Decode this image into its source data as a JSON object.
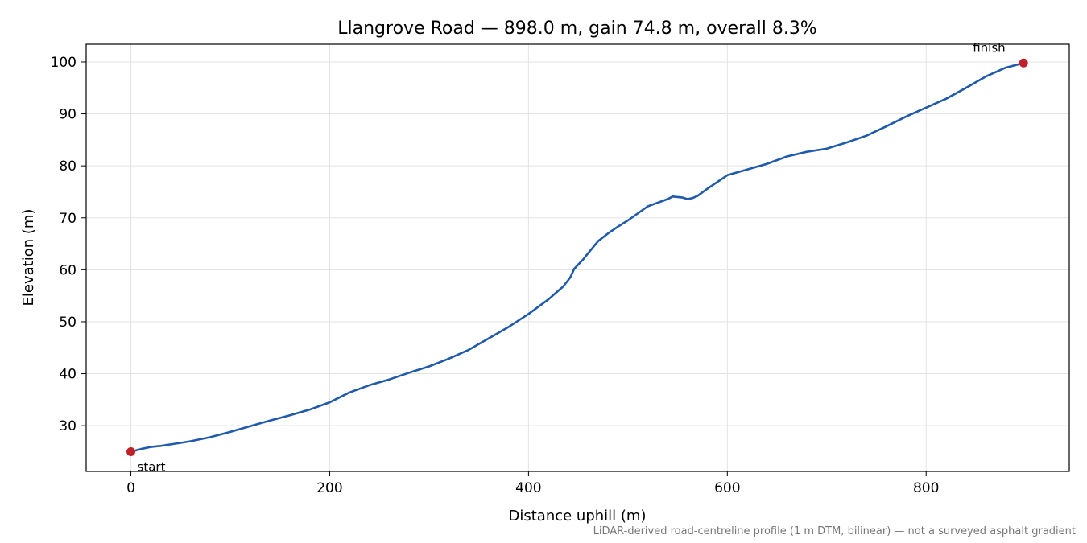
{
  "chart_data": {
    "type": "line",
    "title": "Llangrove Road — 898.0 m, gain 74.8 m, overall 8.3%",
    "xlabel": "Distance uphill (m)",
    "ylabel": "Elevation (m)",
    "xlim": [
      -45,
      944
    ],
    "ylim": [
      21.2,
      103.4
    ],
    "xticks": [
      0,
      200,
      400,
      600,
      800
    ],
    "yticks": [
      30,
      40,
      50,
      60,
      70,
      80,
      90,
      100
    ],
    "grid": true,
    "series": [
      {
        "color": "#1f5aab",
        "x": [
          0,
          10,
          20,
          30,
          40,
          50,
          60,
          80,
          100,
          120,
          140,
          160,
          180,
          200,
          220,
          240,
          260,
          280,
          300,
          320,
          340,
          360,
          380,
          400,
          420,
          435,
          442,
          446,
          450,
          455,
          460,
          470,
          480,
          490,
          500,
          520,
          540,
          545,
          550,
          555,
          560,
          565,
          570,
          580,
          600,
          620,
          640,
          660,
          680,
          700,
          720,
          740,
          760,
          780,
          800,
          820,
          840,
          860,
          880,
          898
        ],
        "y": [
          25.0,
          25.5,
          25.9,
          26.1,
          26.4,
          26.7,
          27.0,
          27.8,
          28.8,
          29.9,
          31.0,
          32.0,
          33.1,
          34.5,
          36.4,
          37.8,
          38.9,
          40.2,
          41.4,
          42.9,
          44.6,
          46.8,
          49.0,
          51.5,
          54.3,
          56.8,
          58.5,
          60.2,
          61.0,
          62.0,
          63.2,
          65.5,
          67.0,
          68.3,
          69.5,
          72.2,
          73.6,
          74.1,
          74.0,
          73.9,
          73.6,
          73.8,
          74.2,
          75.6,
          78.2,
          79.3,
          80.4,
          81.8,
          82.7,
          83.3,
          84.5,
          85.8,
          87.6,
          89.5,
          91.2,
          92.9,
          95.0,
          97.2,
          98.9,
          99.8
        ]
      }
    ],
    "markers": [
      {
        "label": "start",
        "x": 0,
        "y": 25.0,
        "color": "#c0202a"
      },
      {
        "label": "finish",
        "x": 898,
        "y": 99.8,
        "color": "#c0202a"
      }
    ],
    "footnote": "LiDAR-derived road-centreline profile (1 m DTM, bilinear) — not a surveyed asphalt gradient"
  }
}
